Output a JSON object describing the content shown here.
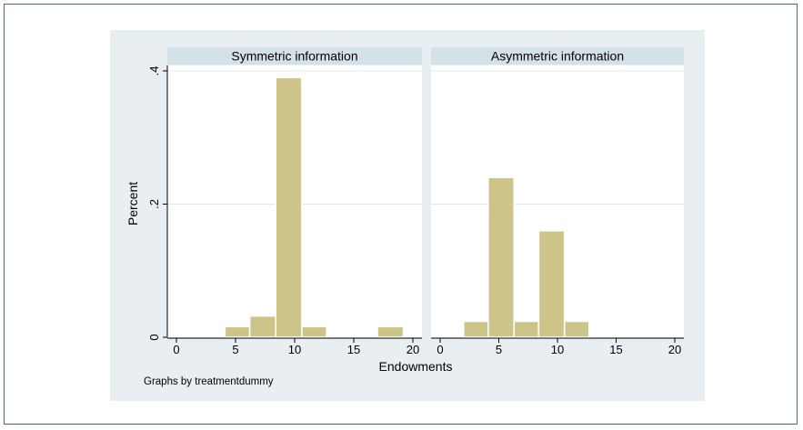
{
  "chart_data": {
    "type": "bar",
    "subtype": "histogram",
    "xlabel": "Endowments",
    "ylabel": "Percent",
    "xlim": [
      -2,
      20
    ],
    "ylim": [
      0,
      0.4
    ],
    "xticks": [
      0,
      5,
      10,
      15,
      20
    ],
    "yticks": [
      0,
      0.2,
      0.4
    ],
    "ytick_labels": [
      "0",
      ".2",
      ".4"
    ],
    "bar_color": "#cdc48a",
    "bar_edge_color": "#ffffff",
    "strip_color": "#d5e1e8",
    "grid": true,
    "note": "Graphs by treatmentdummy",
    "panels": [
      {
        "title": "Symmetric information",
        "bins": [
          {
            "x0": 4.1,
            "x1": 6.2,
            "value": 0.016
          },
          {
            "x0": 6.2,
            "x1": 8.4,
            "value": 0.032
          },
          {
            "x0": 8.4,
            "x1": 10.6,
            "value": 0.39
          },
          {
            "x0": 10.6,
            "x1": 12.7,
            "value": 0.016
          },
          {
            "x0": 17.0,
            "x1": 19.2,
            "value": 0.016
          }
        ]
      },
      {
        "title": "Asymmetric information",
        "bins": [
          {
            "x0": 2.0,
            "x1": 4.1,
            "value": 0.024
          },
          {
            "x0": 4.1,
            "x1": 6.3,
            "value": 0.24
          },
          {
            "x0": 6.3,
            "x1": 8.4,
            "value": 0.024
          },
          {
            "x0": 8.4,
            "x1": 10.6,
            "value": 0.16
          },
          {
            "x0": 10.6,
            "x1": 12.7,
            "value": 0.024
          }
        ]
      }
    ]
  }
}
